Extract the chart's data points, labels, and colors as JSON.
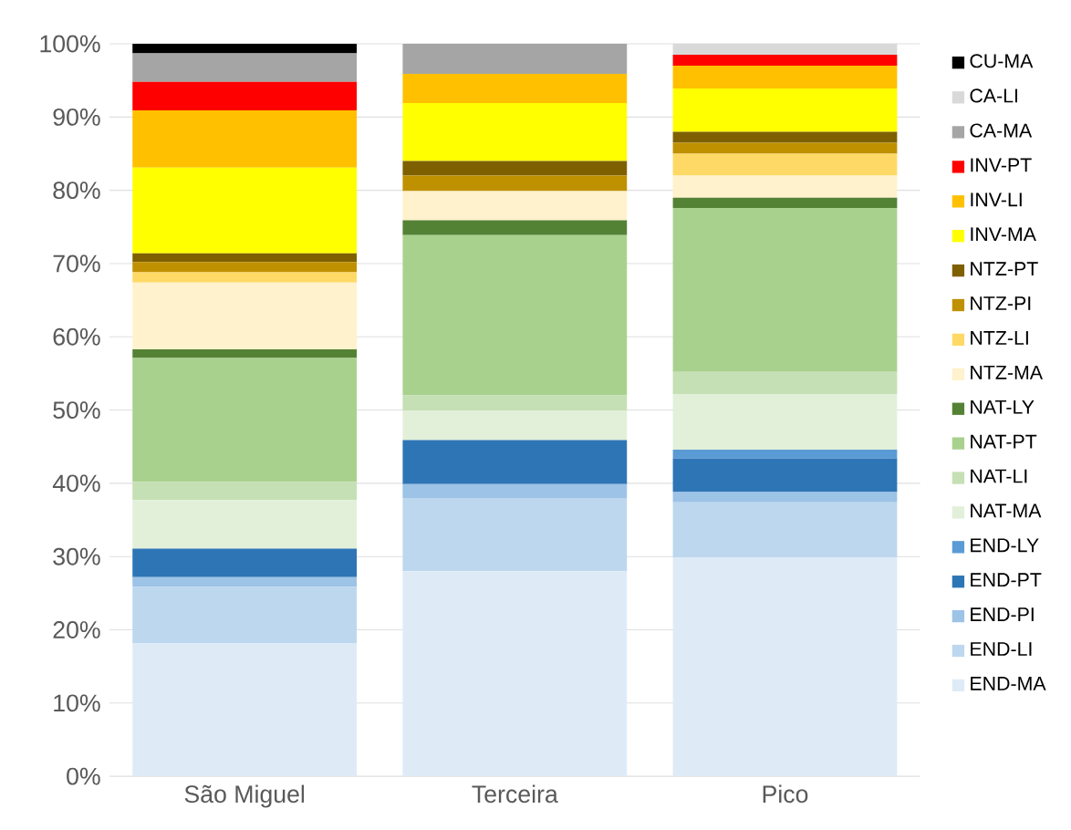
{
  "chart_data": {
    "type": "bar",
    "stacked": true,
    "categories": [
      "São Miguel",
      "Terceira",
      "Pico"
    ],
    "ylim": [
      0,
      100
    ],
    "yticks": [
      {
        "value": 0,
        "label": "0%"
      },
      {
        "value": 10,
        "label": "10%"
      },
      {
        "value": 20,
        "label": "20%"
      },
      {
        "value": 30,
        "label": "30%"
      },
      {
        "value": 40,
        "label": "40%"
      },
      {
        "value": 50,
        "label": "50%"
      },
      {
        "value": 60,
        "label": "60%"
      },
      {
        "value": 70,
        "label": "70%"
      },
      {
        "value": 80,
        "label": "80%"
      },
      {
        "value": 90,
        "label": "90%"
      },
      {
        "value": 100,
        "label": "100%"
      }
    ],
    "grid": "y",
    "legend": "right",
    "series": [
      {
        "name": "END-MA",
        "color": "#deebf7",
        "values": [
          18.2,
          28.0,
          29.9
        ]
      },
      {
        "name": "END-LI",
        "color": "#bdd7ee",
        "values": [
          7.7,
          10.0,
          7.5
        ]
      },
      {
        "name": "END-PI",
        "color": "#9dc3e6",
        "values": [
          1.3,
          1.9,
          1.4
        ]
      },
      {
        "name": "END-PT",
        "color": "#2e75b6",
        "values": [
          3.9,
          6.0,
          4.6
        ]
      },
      {
        "name": "END-LY",
        "color": "#5b9bd5",
        "values": [
          0,
          0,
          1.2
        ]
      },
      {
        "name": "NAT-MA",
        "color": "#e2f0d9",
        "values": [
          6.6,
          4.0,
          7.6
        ]
      },
      {
        "name": "NAT-LI",
        "color": "#c5e0b4",
        "values": [
          2.5,
          2.1,
          3.0
        ]
      },
      {
        "name": "NAT-PT",
        "color": "#a9d18e",
        "values": [
          16.9,
          21.9,
          22.4
        ]
      },
      {
        "name": "NAT-LY",
        "color": "#548235",
        "values": [
          1.2,
          2.0,
          1.4
        ]
      },
      {
        "name": "NTZ-MA",
        "color": "#fff2cc",
        "values": [
          9.1,
          4.0,
          3.0
        ]
      },
      {
        "name": "NTZ-LI",
        "color": "#ffd966",
        "values": [
          1.4,
          0,
          3.0
        ]
      },
      {
        "name": "NTZ-PI",
        "color": "#bf9000",
        "values": [
          1.4,
          2.1,
          1.5
        ]
      },
      {
        "name": "NTZ-PT",
        "color": "#7f6000",
        "values": [
          1.2,
          2.0,
          1.5
        ]
      },
      {
        "name": "INV-MA",
        "color": "#ffff00",
        "values": [
          11.7,
          7.9,
          5.9
        ]
      },
      {
        "name": "INV-LI",
        "color": "#ffc000",
        "values": [
          7.8,
          4.0,
          3.1
        ]
      },
      {
        "name": "INV-PT",
        "color": "#ff0000",
        "values": [
          3.9,
          0,
          1.5
        ]
      },
      {
        "name": "CA-MA",
        "color": "#a5a5a5",
        "values": [
          3.9,
          4.1,
          0
        ]
      },
      {
        "name": "CA-LI",
        "color": "#d9d9d9",
        "values": [
          0,
          0,
          1.5
        ]
      },
      {
        "name": "CU-MA",
        "color": "#000000",
        "values": [
          1.3,
          0,
          0
        ]
      }
    ]
  }
}
